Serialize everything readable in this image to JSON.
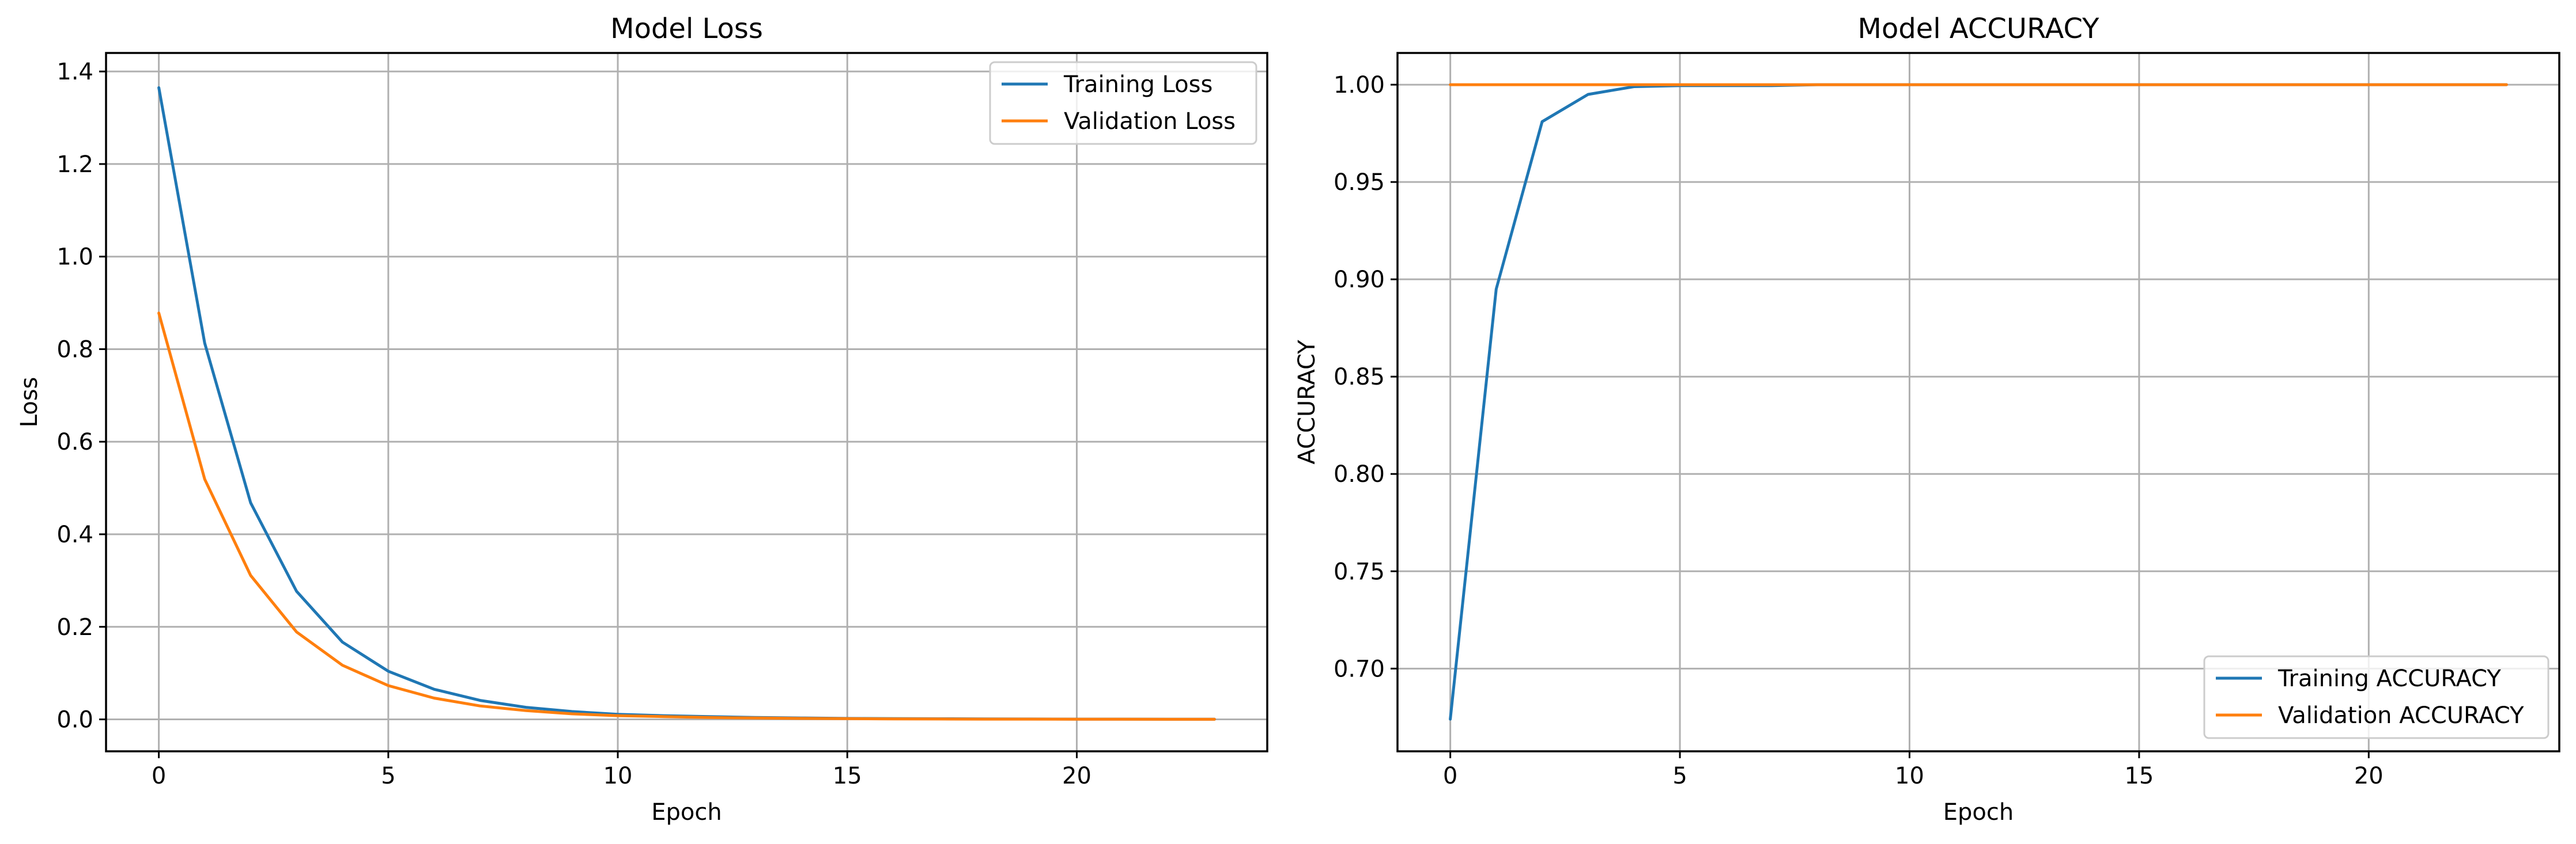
{
  "colors": {
    "training": "#1f77b4",
    "validation": "#ff7f0e",
    "grid": "#b0b0b0"
  },
  "chart_data": [
    {
      "type": "line",
      "title": "Model Loss",
      "xlabel": "Epoch",
      "ylabel": "Loss",
      "xlim": [
        -1.15,
        24.15
      ],
      "ylim": [
        -0.069,
        1.44
      ],
      "xticks": [
        0,
        5,
        10,
        15,
        20
      ],
      "xtick_labels": [
        "0",
        "5",
        "10",
        "15",
        "20"
      ],
      "yticks": [
        0.0,
        0.2,
        0.4,
        0.6,
        0.8,
        1.0,
        1.2,
        1.4
      ],
      "ytick_labels": [
        "0.0",
        "0.2",
        "0.4",
        "0.6",
        "0.8",
        "1.0",
        "1.2",
        "1.4"
      ],
      "grid": true,
      "legend_position": "top-right",
      "x": [
        0,
        1,
        2,
        3,
        4,
        5,
        6,
        7,
        8,
        9,
        10,
        11,
        12,
        13,
        14,
        15,
        16,
        17,
        18,
        19,
        20,
        21,
        22,
        23
      ],
      "series": [
        {
          "name": "Training Loss",
          "color_key": "training",
          "values": [
            1.365,
            0.813,
            0.468,
            0.277,
            0.167,
            0.104,
            0.065,
            0.041,
            0.026,
            0.017,
            0.011,
            0.008,
            0.006,
            0.004,
            0.003,
            0.002,
            0.0017,
            0.0013,
            0.001,
            0.0008,
            0.0006,
            0.0005,
            0.0004,
            0.0003
          ]
        },
        {
          "name": "Validation Loss",
          "color_key": "validation",
          "values": [
            0.878,
            0.519,
            0.311,
            0.189,
            0.117,
            0.073,
            0.046,
            0.029,
            0.019,
            0.012,
            0.008,
            0.006,
            0.004,
            0.003,
            0.002,
            0.0015,
            0.001,
            0.0008,
            0.0006,
            0.0005,
            0.0004,
            0.0003,
            0.0002,
            0.0002
          ]
        }
      ]
    },
    {
      "type": "line",
      "title": "Model ACCURACY",
      "xlabel": "Epoch",
      "ylabel": "ACCURACY",
      "xlim": [
        -1.15,
        24.15
      ],
      "ylim": [
        0.6575,
        1.0163
      ],
      "xticks": [
        0,
        5,
        10,
        15,
        20
      ],
      "xtick_labels": [
        "0",
        "5",
        "10",
        "15",
        "20"
      ],
      "yticks": [
        0.7,
        0.75,
        0.8,
        0.85,
        0.9,
        0.95,
        1.0
      ],
      "ytick_labels": [
        "0.70",
        "0.75",
        "0.80",
        "0.85",
        "0.90",
        "0.95",
        "1.00"
      ],
      "grid": true,
      "legend_position": "bottom-right",
      "x": [
        0,
        1,
        2,
        3,
        4,
        5,
        6,
        7,
        8,
        9,
        10,
        11,
        12,
        13,
        14,
        15,
        16,
        17,
        18,
        19,
        20,
        21,
        22,
        23
      ],
      "series": [
        {
          "name": "Training ACCURACY",
          "color_key": "training",
          "values": [
            0.674,
            0.895,
            0.981,
            0.995,
            0.999,
            0.9995,
            0.9995,
            0.9995,
            1.0,
            1.0,
            1.0,
            1.0,
            1.0,
            1.0,
            1.0,
            1.0,
            1.0,
            1.0,
            1.0,
            1.0,
            1.0,
            1.0,
            1.0,
            1.0
          ]
        },
        {
          "name": "Validation ACCURACY",
          "color_key": "validation",
          "values": [
            1.0,
            1.0,
            1.0,
            1.0,
            1.0,
            1.0,
            1.0,
            1.0,
            1.0,
            1.0,
            1.0,
            1.0,
            1.0,
            1.0,
            1.0,
            1.0,
            1.0,
            1.0,
            1.0,
            1.0,
            1.0,
            1.0,
            1.0,
            1.0
          ]
        }
      ]
    }
  ]
}
